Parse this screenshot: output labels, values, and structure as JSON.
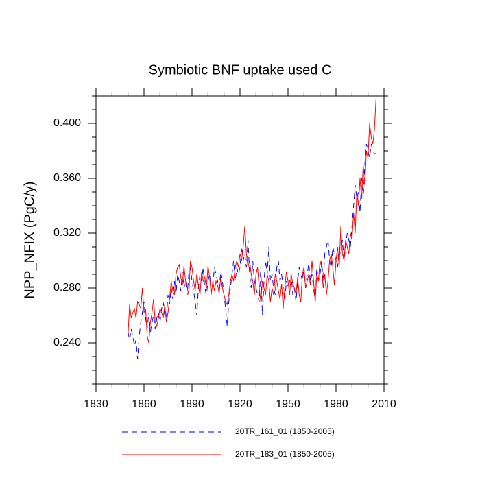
{
  "chart_data": {
    "type": "line",
    "title": "Symbiotic BNF uptake used C",
    "y_label": "NPP_NFIX  (PgC/y)",
    "x": [
      1850,
      1851,
      1852,
      1853,
      1854,
      1855,
      1856,
      1857,
      1858,
      1859,
      1860,
      1861,
      1862,
      1863,
      1864,
      1865,
      1866,
      1867,
      1868,
      1869,
      1870,
      1871,
      1872,
      1873,
      1874,
      1875,
      1876,
      1877,
      1878,
      1879,
      1880,
      1881,
      1882,
      1883,
      1884,
      1885,
      1886,
      1887,
      1888,
      1889,
      1890,
      1891,
      1892,
      1893,
      1894,
      1895,
      1896,
      1897,
      1898,
      1899,
      1900,
      1901,
      1902,
      1903,
      1904,
      1905,
      1906,
      1907,
      1908,
      1909,
      1910,
      1911,
      1912,
      1913,
      1914,
      1915,
      1916,
      1917,
      1918,
      1919,
      1920,
      1921,
      1922,
      1923,
      1924,
      1925,
      1926,
      1927,
      1928,
      1929,
      1930,
      1931,
      1932,
      1933,
      1934,
      1935,
      1936,
      1937,
      1938,
      1939,
      1940,
      1941,
      1942,
      1943,
      1944,
      1945,
      1946,
      1947,
      1948,
      1949,
      1950,
      1951,
      1952,
      1953,
      1954,
      1955,
      1956,
      1957,
      1958,
      1959,
      1960,
      1961,
      1962,
      1963,
      1964,
      1965,
      1966,
      1967,
      1968,
      1969,
      1970,
      1971,
      1972,
      1973,
      1974,
      1975,
      1976,
      1977,
      1978,
      1979,
      1980,
      1981,
      1982,
      1983,
      1984,
      1985,
      1986,
      1987,
      1988,
      1989,
      1990,
      1991,
      1992,
      1993,
      1994,
      1995,
      1996,
      1997,
      1998,
      1999,
      2000,
      2001,
      2002,
      2003,
      2004,
      2005
    ],
    "series": [
      {
        "name": "20TR_161_01 (1850-2005)",
        "color": "#0000ff",
        "dash": true,
        "values": [
          0.248,
          0.242,
          0.25,
          0.245,
          0.238,
          0.242,
          0.228,
          0.245,
          0.255,
          0.262,
          0.27,
          0.258,
          0.25,
          0.262,
          0.248,
          0.255,
          0.26,
          0.25,
          0.258,
          0.262,
          0.255,
          0.265,
          0.27,
          0.26,
          0.258,
          0.275,
          0.268,
          0.28,
          0.272,
          0.285,
          0.275,
          0.29,
          0.285,
          0.278,
          0.292,
          0.28,
          0.285,
          0.275,
          0.29,
          0.295,
          0.285,
          0.278,
          0.27,
          0.26,
          0.28,
          0.29,
          0.285,
          0.295,
          0.28,
          0.275,
          0.285,
          0.29,
          0.278,
          0.282,
          0.295,
          0.29,
          0.285,
          0.28,
          0.292,
          0.285,
          0.275,
          0.265,
          0.252,
          0.27,
          0.28,
          0.29,
          0.3,
          0.285,
          0.295,
          0.29,
          0.295,
          0.31,
          0.3,
          0.305,
          0.295,
          0.315,
          0.29,
          0.28,
          0.3,
          0.285,
          0.28,
          0.275,
          0.27,
          0.295,
          0.26,
          0.285,
          0.3,
          0.29,
          0.31,
          0.285,
          0.29,
          0.28,
          0.275,
          0.295,
          0.3,
          0.285,
          0.29,
          0.28,
          0.27,
          0.285,
          0.28,
          0.285,
          0.29,
          0.275,
          0.28,
          0.27,
          0.285,
          0.295,
          0.29,
          0.285,
          0.295,
          0.28,
          0.29,
          0.298,
          0.285,
          0.29,
          0.28,
          0.27,
          0.295,
          0.285,
          0.29,
          0.3,
          0.285,
          0.305,
          0.31,
          0.315,
          0.3,
          0.295,
          0.31,
          0.305,
          0.3,
          0.295,
          0.31,
          0.305,
          0.315,
          0.3,
          0.31,
          0.32,
          0.315,
          0.31,
          0.325,
          0.34,
          0.355,
          0.345,
          0.35,
          0.335,
          0.36,
          0.345,
          0.37,
          0.385,
          0.38,
          0.375,
          0.385,
          0.38,
          0.378,
          0.378
        ]
      },
      {
        "name": "20TR_183_01 (1850-2005)",
        "color": "#ff0000",
        "dash": false,
        "values": [
          0.245,
          0.268,
          0.258,
          0.262,
          0.265,
          0.258,
          0.27,
          0.268,
          0.265,
          0.28,
          0.262,
          0.265,
          0.245,
          0.24,
          0.255,
          0.262,
          0.272,
          0.255,
          0.252,
          0.258,
          0.265,
          0.262,
          0.258,
          0.268,
          0.255,
          0.262,
          0.272,
          0.285,
          0.278,
          0.275,
          0.29,
          0.295,
          0.297,
          0.288,
          0.282,
          0.296,
          0.285,
          0.28,
          0.275,
          0.3,
          0.295,
          0.285,
          0.278,
          0.29,
          0.282,
          0.275,
          0.292,
          0.285,
          0.288,
          0.28,
          0.296,
          0.288,
          0.275,
          0.285,
          0.278,
          0.285,
          0.282,
          0.276,
          0.288,
          0.28,
          0.275,
          0.27,
          0.268,
          0.275,
          0.285,
          0.29,
          0.285,
          0.295,
          0.3,
          0.295,
          0.305,
          0.3,
          0.31,
          0.325,
          0.305,
          0.295,
          0.3,
          0.29,
          0.285,
          0.275,
          0.29,
          0.295,
          0.28,
          0.27,
          0.285,
          0.28,
          0.275,
          0.29,
          0.285,
          0.27,
          0.28,
          0.275,
          0.29,
          0.285,
          0.278,
          0.272,
          0.283,
          0.265,
          0.28,
          0.292,
          0.285,
          0.275,
          0.29,
          0.283,
          0.28,
          0.275,
          0.288,
          0.275,
          0.27,
          0.29,
          0.295,
          0.28,
          0.285,
          0.29,
          0.282,
          0.3,
          0.285,
          0.27,
          0.29,
          0.285,
          0.3,
          0.295,
          0.28,
          0.29,
          0.275,
          0.285,
          0.3,
          0.305,
          0.295,
          0.282,
          0.3,
          0.31,
          0.295,
          0.325,
          0.305,
          0.3,
          0.315,
          0.31,
          0.305,
          0.32,
          0.315,
          0.335,
          0.32,
          0.35,
          0.34,
          0.36,
          0.345,
          0.37,
          0.355,
          0.38,
          0.375,
          0.4,
          0.39,
          0.385,
          0.395,
          0.418
        ]
      }
    ],
    "xlim": [
      1830,
      2010
    ],
    "xticks": [
      1830,
      1860,
      1890,
      1920,
      1950,
      1980,
      2010
    ],
    "xminorticks": [
      1840,
      1850,
      1870,
      1880,
      1900,
      1910,
      1930,
      1940,
      1960,
      1970,
      1990,
      2000
    ],
    "ylim": [
      0.21,
      0.42
    ],
    "yticks": [
      {
        "value": 0.24,
        "label": "0.240"
      },
      {
        "value": 0.28,
        "label": "0.280"
      },
      {
        "value": 0.32,
        "label": "0.320"
      },
      {
        "value": 0.36,
        "label": "0.360"
      },
      {
        "value": 0.4,
        "label": "0.400"
      }
    ],
    "yminorticks": [
      0.21,
      0.22,
      0.23,
      0.25,
      0.26,
      0.27,
      0.29,
      0.3,
      0.31,
      0.33,
      0.34,
      0.35,
      0.37,
      0.38,
      0.39,
      0.41,
      0.42
    ]
  }
}
